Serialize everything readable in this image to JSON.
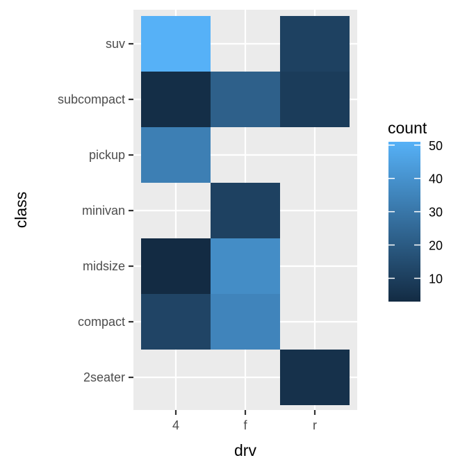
{
  "chart_data": {
    "type": "heatmap",
    "title": "",
    "xlabel": "drv",
    "ylabel": "class",
    "x_categories": [
      "4",
      "f",
      "r"
    ],
    "y_categories": [
      "2seater",
      "compact",
      "midsize",
      "minivan",
      "pickup",
      "subcompact",
      "suv"
    ],
    "cells": [
      {
        "x": "4",
        "y": "suv",
        "count": 51
      },
      {
        "x": "r",
        "y": "suv",
        "count": 11
      },
      {
        "x": "4",
        "y": "subcompact",
        "count": 4
      },
      {
        "x": "f",
        "y": "subcompact",
        "count": 22
      },
      {
        "x": "r",
        "y": "subcompact",
        "count": 9
      },
      {
        "x": "4",
        "y": "pickup",
        "count": 33
      },
      {
        "x": "f",
        "y": "minivan",
        "count": 11
      },
      {
        "x": "4",
        "y": "midsize",
        "count": 3
      },
      {
        "x": "f",
        "y": "midsize",
        "count": 38
      },
      {
        "x": "4",
        "y": "compact",
        "count": 12
      },
      {
        "x": "f",
        "y": "compact",
        "count": 35
      },
      {
        "x": "r",
        "y": "2seater",
        "count": 5
      }
    ],
    "legend": {
      "title": "count",
      "placement": "right",
      "ticks": [
        "10",
        "20",
        "30",
        "40",
        "50"
      ],
      "min": 3,
      "max": 51,
      "low_color": "#132B43",
      "high_color": "#56B1F7"
    },
    "panel_color": "#EBEBEB",
    "grid_color": "#FFFFFF",
    "grid": true
  }
}
